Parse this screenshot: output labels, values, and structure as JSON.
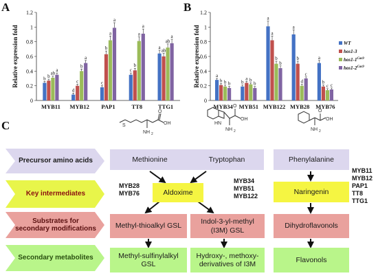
{
  "panels": {
    "a": "A",
    "b": "B",
    "c": "C"
  },
  "chart_data": [
    {
      "type": "bar",
      "ylabel": "Relative expression fold",
      "ylim": [
        0,
        1.2
      ],
      "yticks": [
        "0",
        "0.2",
        "0.4",
        "0.6",
        "0.8",
        "1",
        "1.2"
      ],
      "categories": [
        "MYB11",
        "MYB12",
        "PAP1",
        "TT8",
        "TTG1"
      ],
      "series": [
        {
          "values": [
            0.24,
            0.08,
            0.18,
            0.35,
            0.64
          ],
          "letters": [
            "b",
            "d",
            "c",
            "c",
            "a"
          ]
        },
        {
          "values": [
            0.27,
            0.2,
            0.63,
            0.41,
            0.6
          ],
          "letters": [
            "b",
            "c",
            "b",
            "b",
            "ab"
          ]
        },
        {
          "values": [
            0.31,
            0.4,
            0.82,
            0.81,
            0.72
          ],
          "letters": [
            "ab",
            "b",
            "a",
            "a",
            "ab"
          ]
        },
        {
          "values": [
            0.35,
            0.51,
            0.99,
            0.91,
            0.78
          ],
          "letters": [
            "a",
            "a",
            "a",
            "a",
            "a"
          ]
        }
      ]
    },
    {
      "type": "bar",
      "ylabel": "Relative expression fold",
      "ylim": [
        0,
        1.2
      ],
      "yticks": [
        "0",
        "0.2",
        "0.4",
        "0.6",
        "0.8",
        "1",
        "1.2"
      ],
      "categories": [
        "MYB34",
        "MYB51",
        "MYB122",
        "MYB28",
        "MYB76"
      ],
      "series": [
        {
          "name": "WT",
          "values": [
            0.28,
            0.19,
            1.01,
            0.9,
            0.51
          ],
          "letters": [
            "a",
            "b",
            "a",
            "a",
            "a"
          ]
        },
        {
          "name": "hos1-3",
          "values": [
            0.21,
            0.24,
            0.82,
            0.5,
            0.19
          ],
          "letters": [
            "b",
            "a",
            "a",
            "b",
            "b"
          ]
        },
        {
          "name": "hos1-1Cas9",
          "values": [
            0.19,
            0.22,
            0.5,
            0.2,
            0.14
          ],
          "letters": [
            "b",
            "b",
            "b",
            "d",
            "c"
          ]
        },
        {
          "name": "hos1-2Cas9",
          "values": [
            0.17,
            0.17,
            0.44,
            0.3,
            0.15
          ],
          "letters": [
            "b",
            "b",
            "b",
            "c",
            "c"
          ]
        }
      ],
      "legend": [
        "WT",
        "hos1-3",
        "hos1-1",
        "hos1-2"
      ],
      "legend_sup": [
        "",
        "",
        "Cas9",
        "Cas9"
      ],
      "colors": [
        "#4472c4",
        "#c0504d",
        "#9bbb59",
        "#8064a2"
      ]
    }
  ],
  "pathway": {
    "rows": [
      "Precursor amino acids",
      "Key intermediates",
      "Substrates for secondary modifications",
      "Secondary metabolites"
    ],
    "methionine": "Methionine",
    "tryptophan": "Tryptophan",
    "phenylalanine": "Phenylalanine",
    "aldoxime": "Aldoxime",
    "naringenin": "Naringenin",
    "methylthio": "Methyl-thioalkyl GSL",
    "indol": "Indol-3-yl-methyl (I3M) GSL",
    "dihydro": "Dihydroflavonols",
    "methylsulf": "Methyl-sulfinylalkyl GSL",
    "hydroxy": "Hydroxy-, methoxy-derivatives of I3M",
    "flavonols": "Flavonols",
    "myb_left": [
      "MYB28",
      "MYB76"
    ],
    "myb_mid": [
      "MYB34",
      "MYB51",
      "MYB122"
    ],
    "myb_right": [
      "MYB11",
      "MYB12",
      "PAP1",
      "TT8",
      "TTG1"
    ],
    "struct_labels": {
      "oh": "OH",
      "nh2": "NH",
      "sub2": "2",
      "o": "O",
      "s": "S",
      "hn": "HN"
    }
  }
}
